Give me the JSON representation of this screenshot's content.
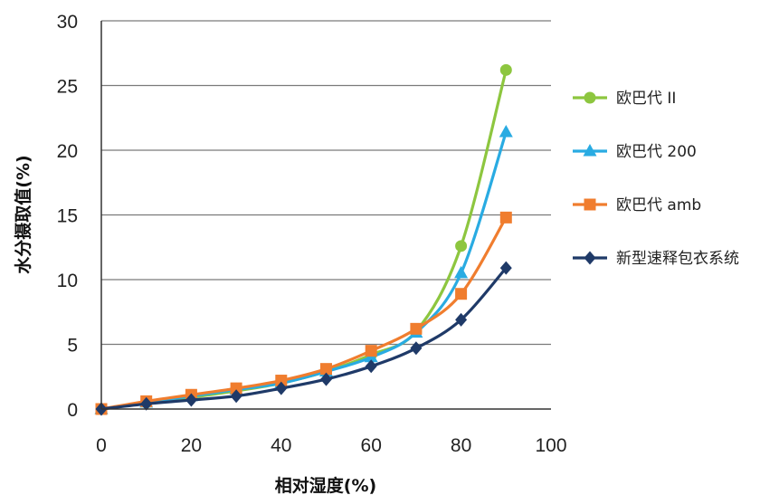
{
  "chart_data": {
    "type": "line",
    "title": "",
    "xlabel": "相对湿度(%)",
    "ylabel": "水分摄取值(%)",
    "xlim": [
      0,
      100
    ],
    "ylim": [
      0,
      30
    ],
    "x_ticks": [
      0,
      20,
      40,
      60,
      80,
      100
    ],
    "y_ticks": [
      0,
      5,
      10,
      15,
      20,
      25,
      30
    ],
    "grid": "horizontal",
    "legend_position": "right",
    "series": [
      {
        "name": "欧巴代 II",
        "color": "#8dc63f",
        "marker": "circle",
        "x": [
          0,
          10,
          20,
          30,
          40,
          50,
          60,
          70,
          80,
          90
        ],
        "values": [
          0.0,
          0.5,
          0.9,
          1.4,
          2.0,
          2.9,
          4.2,
          6.0,
          12.6,
          26.2
        ]
      },
      {
        "name": "欧巴代 200",
        "color": "#29abe2",
        "marker": "triangle",
        "x": [
          0,
          10,
          20,
          30,
          40,
          50,
          60,
          70,
          80,
          90
        ],
        "values": [
          0.0,
          0.5,
          1.0,
          1.5,
          2.0,
          2.9,
          4.0,
          5.9,
          10.5,
          21.4
        ]
      },
      {
        "name": "欧巴代 amb",
        "color": "#f07d2e",
        "marker": "square",
        "x": [
          0,
          10,
          20,
          30,
          40,
          50,
          60,
          70,
          80,
          90
        ],
        "values": [
          0.0,
          0.6,
          1.1,
          1.6,
          2.2,
          3.1,
          4.5,
          6.2,
          8.9,
          14.8
        ]
      },
      {
        "name": "新型速释包衣系统",
        "color": "#1f3a68",
        "marker": "diamond",
        "x": [
          0,
          10,
          20,
          30,
          40,
          50,
          60,
          70,
          80,
          90
        ],
        "values": [
          0.0,
          0.4,
          0.7,
          1.0,
          1.6,
          2.3,
          3.3,
          4.7,
          6.9,
          10.9
        ]
      }
    ]
  }
}
